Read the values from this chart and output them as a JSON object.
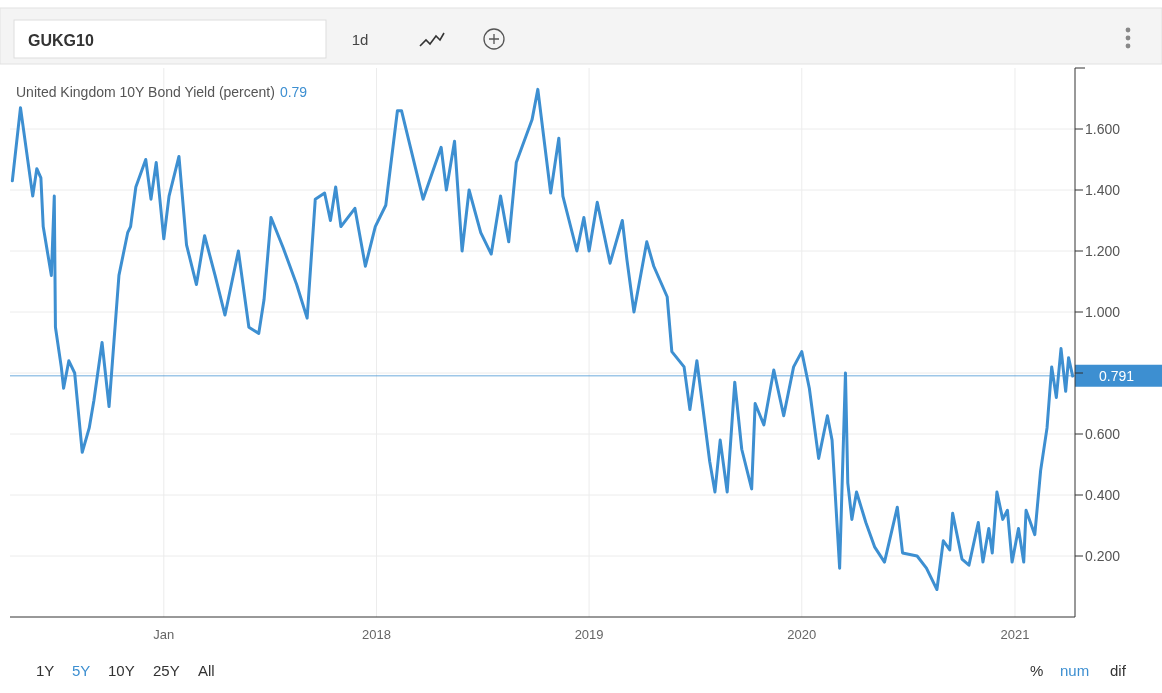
{
  "chart_data": {
    "type": "line",
    "title": "United Kingdom 10Y Bond Yield (percent)",
    "annotations": [
      "0.79",
      "GUKG10",
      "1d",
      "1Y",
      "5Y",
      "10Y",
      "25Y",
      "All",
      "%",
      "num",
      "dif"
    ],
    "x": [
      "2016-04-16",
      "2016-04-30",
      "2016-05-21",
      "2016-05-28",
      "2016-06-04",
      "2016-06-08",
      "2016-06-22",
      "2016-06-27",
      "2016-06-29",
      "2016-07-09",
      "2016-07-13",
      "2016-07-22",
      "2016-08-01",
      "2016-08-14",
      "2016-08-26",
      "2016-09-03",
      "2016-09-17",
      "2016-09-29",
      "2016-10-16",
      "2016-10-31",
      "2016-11-05",
      "2016-11-14",
      "2016-12-01",
      "2016-12-10",
      "2016-12-19",
      "2017-01-01",
      "2017-01-10",
      "2017-01-27",
      "2017-02-09",
      "2017-02-26",
      "2017-03-12",
      "2017-03-30",
      "2017-04-16",
      "2017-05-09",
      "2017-05-27",
      "2017-06-13",
      "2017-06-22",
      "2017-07-04",
      "2017-07-25",
      "2017-08-17",
      "2017-09-04",
      "2017-09-18",
      "2017-10-04",
      "2017-10-14",
      "2017-10-23",
      "2017-11-01",
      "2017-11-25",
      "2017-12-13",
      "2017-12-30",
      "2018-01-17",
      "2018-02-06",
      "2018-02-13",
      "2018-03-22",
      "2018-04-22",
      "2018-05-01",
      "2018-05-15",
      "2018-05-28",
      "2018-06-09",
      "2018-06-29",
      "2018-07-17",
      "2018-08-02",
      "2018-08-16",
      "2018-08-29",
      "2018-09-25",
      "2018-10-05",
      "2018-10-27",
      "2018-11-10",
      "2018-11-17",
      "2018-12-11",
      "2018-12-23",
      "2019-01-01",
      "2019-01-15",
      "2019-02-06",
      "2019-02-27",
      "2019-03-07",
      "2019-03-19",
      "2019-04-10",
      "2019-04-22",
      "2019-05-15",
      "2019-05-23",
      "2019-06-13",
      "2019-06-23",
      "2019-07-05",
      "2019-07-27",
      "2019-08-05",
      "2019-08-14",
      "2019-08-26",
      "2019-09-08",
      "2019-09-20",
      "2019-10-07",
      "2019-10-13",
      "2019-10-28",
      "2019-11-14",
      "2019-12-01",
      "2019-12-18",
      "2020-01-01",
      "2020-01-14",
      "2020-01-30",
      "2020-02-14",
      "2020-02-22",
      "2020-03-06",
      "2020-03-16",
      "2020-03-20",
      "2020-03-27",
      "2020-04-04",
      "2020-04-20",
      "2020-05-05",
      "2020-05-22",
      "2020-06-13",
      "2020-06-22",
      "2020-07-17",
      "2020-08-02",
      "2020-08-20",
      "2020-08-31",
      "2020-09-11",
      "2020-09-16",
      "2020-10-02",
      "2020-10-14",
      "2020-10-30",
      "2020-11-07",
      "2020-11-17",
      "2020-11-23",
      "2020-12-01",
      "2020-12-11",
      "2020-12-19",
      "2020-12-27",
      "2021-01-07",
      "2021-01-16",
      "2021-01-20",
      "2021-02-04",
      "2021-02-14",
      "2021-02-25",
      "2021-03-05",
      "2021-03-13",
      "2021-03-21",
      "2021-03-29",
      "2021-04-03",
      "2021-04-10"
    ],
    "series": [
      {
        "color": "#3d8fd1",
        "values": [
          1.43,
          1.67,
          1.38,
          1.47,
          1.44,
          1.28,
          1.12,
          1.38,
          0.95,
          0.82,
          0.75,
          0.84,
          0.8,
          0.54,
          0.62,
          0.71,
          0.9,
          0.69,
          1.12,
          1.26,
          1.28,
          1.41,
          1.5,
          1.37,
          1.49,
          1.24,
          1.38,
          1.51,
          1.22,
          1.09,
          1.25,
          1.12,
          0.99,
          1.2,
          0.95,
          0.93,
          1.04,
          1.31,
          1.21,
          1.09,
          0.98,
          1.37,
          1.39,
          1.3,
          1.41,
          1.28,
          1.34,
          1.15,
          1.28,
          1.35,
          1.66,
          1.66,
          1.37,
          1.54,
          1.4,
          1.56,
          1.2,
          1.4,
          1.26,
          1.19,
          1.38,
          1.23,
          1.49,
          1.63,
          1.73,
          1.39,
          1.57,
          1.38,
          1.2,
          1.31,
          1.2,
          1.36,
          1.16,
          1.3,
          1.17,
          1.0,
          1.23,
          1.15,
          1.05,
          0.87,
          0.82,
          0.68,
          0.84,
          0.51,
          0.41,
          0.58,
          0.41,
          0.77,
          0.55,
          0.42,
          0.7,
          0.63,
          0.81,
          0.66,
          0.82,
          0.87,
          0.75,
          0.52,
          0.66,
          0.58,
          0.16,
          0.8,
          0.44,
          0.32,
          0.41,
          0.31,
          0.23,
          0.18,
          0.36,
          0.21,
          0.2,
          0.16,
          0.09,
          0.25,
          0.22,
          0.34,
          0.19,
          0.17,
          0.31,
          0.18,
          0.29,
          0.21,
          0.41,
          0.32,
          0.35,
          0.18,
          0.29,
          0.18,
          0.35,
          0.27,
          0.48,
          0.62,
          0.82,
          0.72,
          0.88,
          0.74,
          0.85,
          0.79
        ]
      }
    ],
    "xlim": [
      "2016-04-12",
      "2021-04-14"
    ],
    "xticks": [
      {
        "value": "2017-01-01",
        "label": "Jan"
      },
      {
        "value": "2018-01-01",
        "label": "2018"
      },
      {
        "value": "2019-01-01",
        "label": "2019"
      },
      {
        "value": "2020-01-01",
        "label": "2020"
      },
      {
        "value": "2021-01-01",
        "label": "2021"
      }
    ],
    "ylim": [
      0,
      1.8
    ],
    "yticks": [
      {
        "value": 0.2,
        "label": "0.200"
      },
      {
        "value": 0.4,
        "label": "0.400"
      },
      {
        "value": 0.6,
        "label": "0.600"
      },
      {
        "value": 0.8,
        "label": null
      },
      {
        "value": 1.0,
        "label": "1.000"
      },
      {
        "value": 1.2,
        "label": "1.200"
      },
      {
        "value": 1.4,
        "label": "1.400"
      },
      {
        "value": 1.6,
        "label": "1.600"
      }
    ],
    "ref_lines": [
      {
        "axis": "y",
        "value": 0.791,
        "label": "0.791",
        "color": "#3d8fd1"
      }
    ],
    "grid": true,
    "line_style": "solid",
    "marker": "none"
  }
}
